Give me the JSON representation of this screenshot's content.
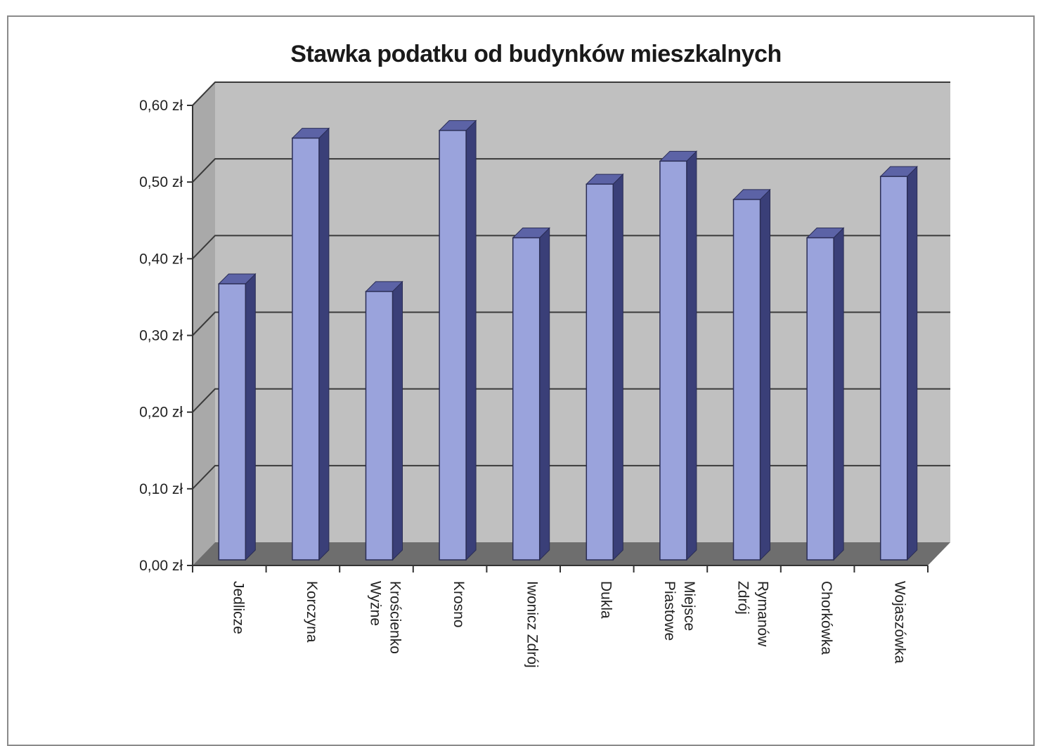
{
  "chart_data": {
    "type": "bar",
    "title": "Stawka podatku od budynków mieszkalnych",
    "categories": [
      [
        "Jedlicze"
      ],
      [
        "Korczyna"
      ],
      [
        "Krościenko",
        "Wyżne"
      ],
      [
        "Krosno"
      ],
      [
        "Iwonicz Zdrój"
      ],
      [
        "Dukla"
      ],
      [
        "Miejsce",
        "Piastowe"
      ],
      [
        "Rymanów",
        "Zdrój"
      ],
      [
        "Chorkówka"
      ],
      [
        "Wojaszówka"
      ]
    ],
    "values": [
      0.36,
      0.55,
      0.35,
      0.56,
      0.42,
      0.49,
      0.52,
      0.47,
      0.42,
      0.5
    ],
    "ylim": [
      0,
      0.6
    ],
    "yticks": [
      "0,00 zł",
      "0,10 zł",
      "0,20 zł",
      "0,30 zł",
      "0,40 zł",
      "0,50 zł",
      "0,60 zł"
    ],
    "grid": true,
    "style": "3d-column",
    "colors": {
      "bar_front": "#9aa3dc",
      "bar_side": "#3a3f78",
      "bar_top": "#5c63a6",
      "wall": "#c0c0c0",
      "side_wall": "#a9a9a9",
      "floor": "#6e6e6e",
      "gridline": "#3a3a3a"
    }
  }
}
